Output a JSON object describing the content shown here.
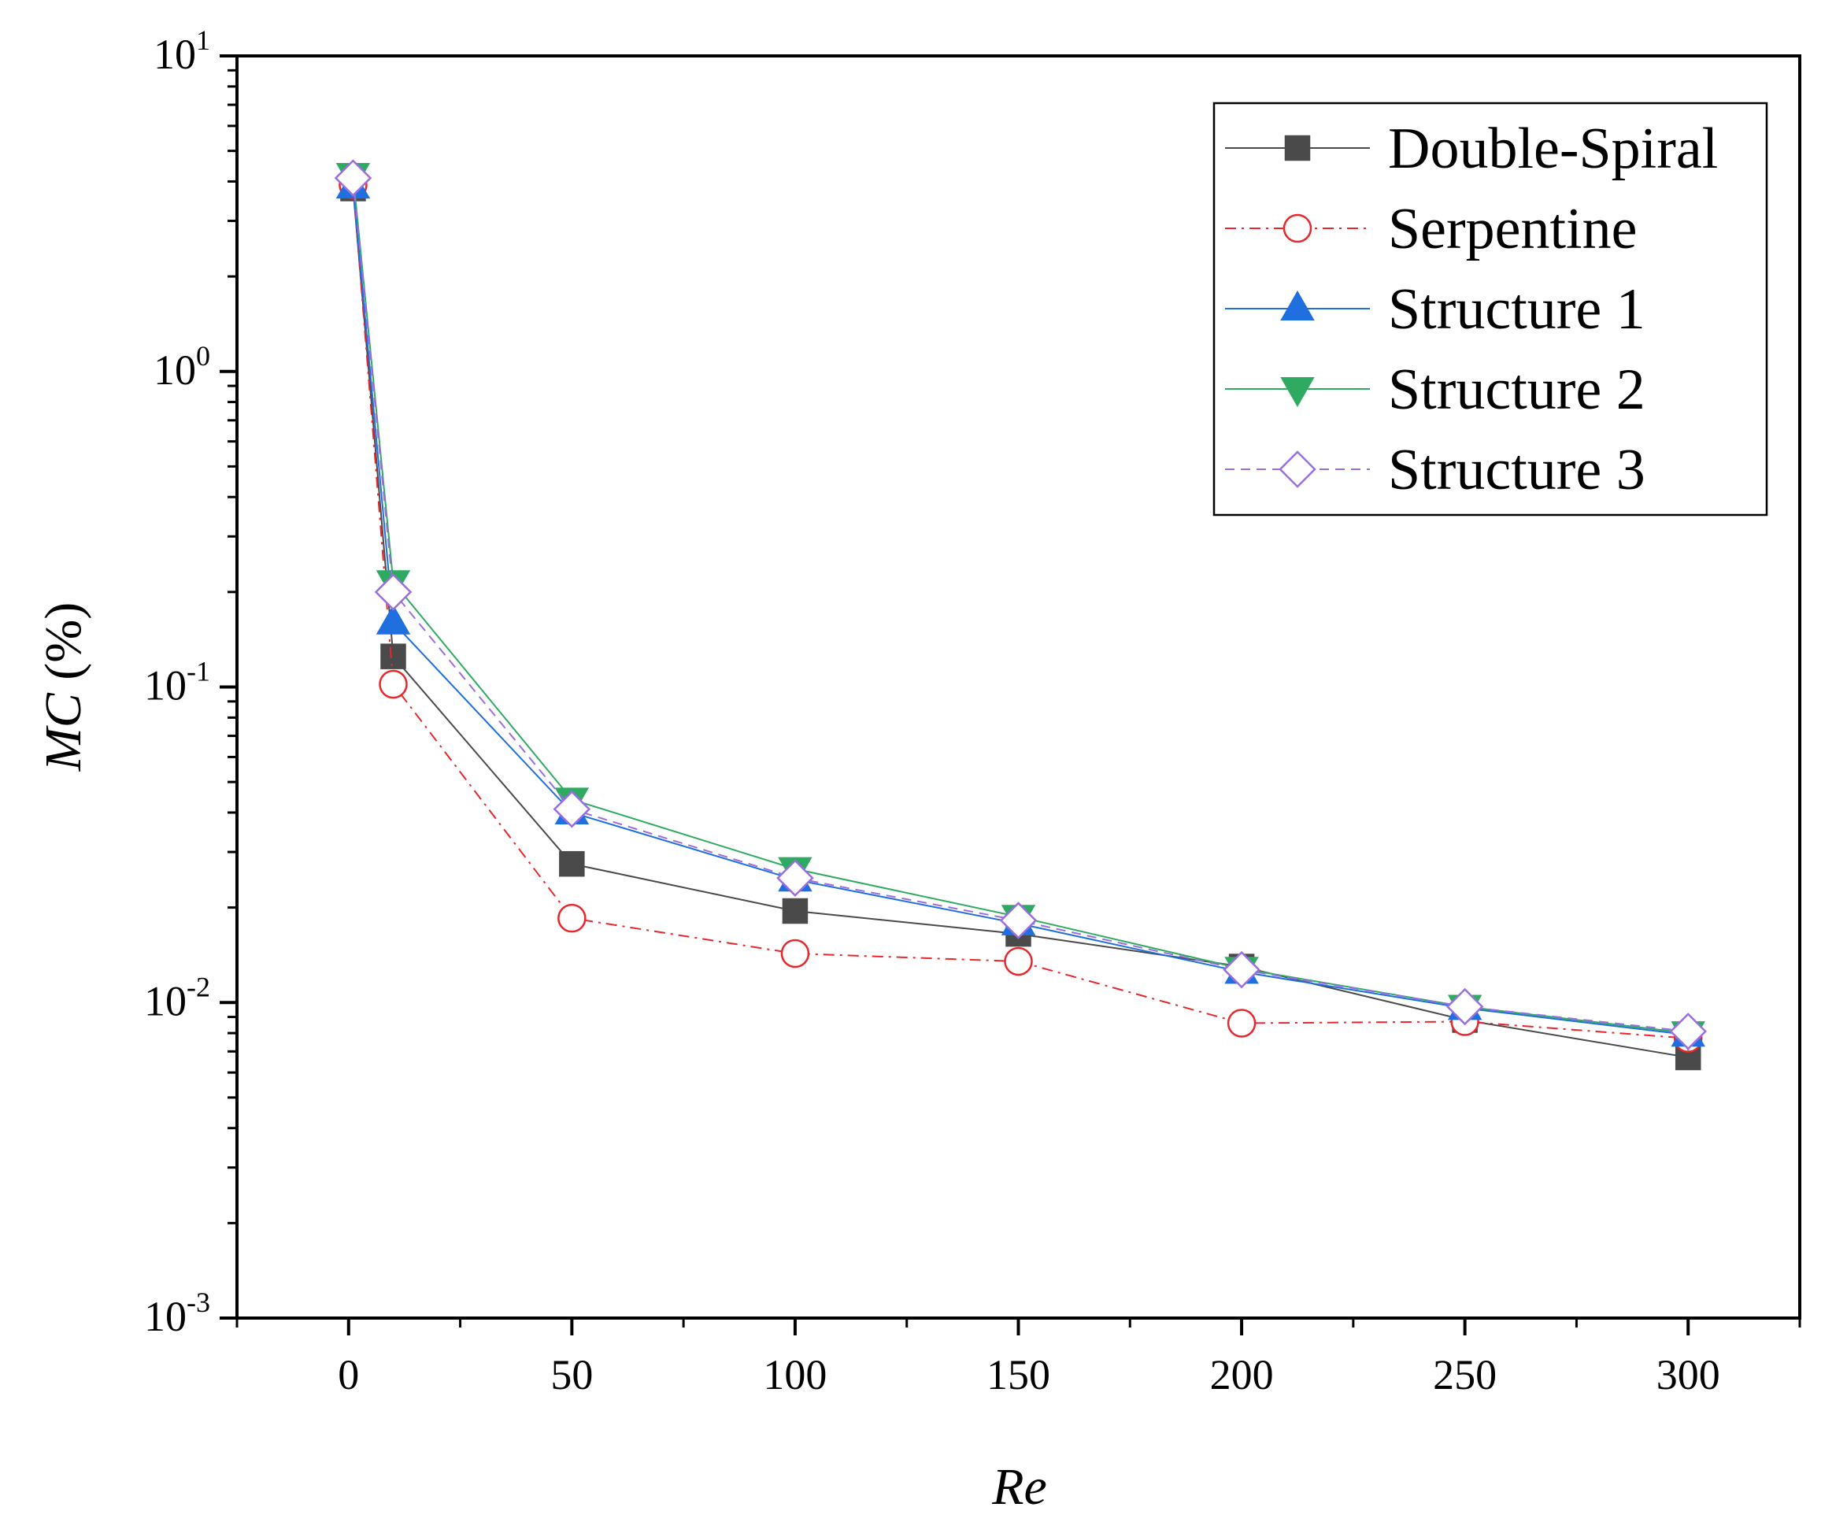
{
  "chart_data": {
    "type": "line",
    "title": "",
    "xlabel": "Re",
    "ylabel_italic": "MC",
    "ylabel_unit": " (%)",
    "yscale": "log",
    "xlim": [
      -25,
      325
    ],
    "ylim": [
      0.001,
      10
    ],
    "x_ticks": [
      0,
      50,
      100,
      150,
      200,
      250,
      300
    ],
    "x_tick_labels": [
      "0",
      "50",
      "100",
      "150",
      "200",
      "250",
      "300"
    ],
    "y_ticks": [
      {
        "value": 10,
        "base": "10",
        "exp": "1"
      },
      {
        "value": 1,
        "base": "10",
        "exp": "0"
      },
      {
        "value": 0.1,
        "base": "10",
        "exp": "-1"
      },
      {
        "value": 0.01,
        "base": "10",
        "exp": "-2"
      },
      {
        "value": 0.001,
        "base": "10",
        "exp": "-3"
      }
    ],
    "legend_position": "top-right",
    "grid": false,
    "x": [
      1,
      10,
      50,
      100,
      150,
      200,
      250,
      300
    ],
    "series": [
      {
        "name": "Double-Spiral",
        "color": "#4a4a4a",
        "marker": "square",
        "filled": true,
        "line": "solid",
        "values": [
          3.8,
          0.125,
          0.0275,
          0.0195,
          0.0165,
          0.013,
          0.0088,
          0.0067
        ]
      },
      {
        "name": "Serpentine",
        "color": "#e8262b",
        "marker": "circle",
        "filled": false,
        "line": "dashdot",
        "values": [
          3.9,
          0.102,
          0.0185,
          0.0143,
          0.0135,
          0.0086,
          0.0087,
          0.0077
        ]
      },
      {
        "name": "Structure 1",
        "color": "#1f6fde",
        "marker": "triangle-up",
        "filled": true,
        "line": "solid",
        "values": [
          3.85,
          0.16,
          0.04,
          0.0245,
          0.0178,
          0.0125,
          0.0096,
          0.0079
        ]
      },
      {
        "name": "Structure 2",
        "color": "#2faa62",
        "marker": "triangle-down",
        "filled": true,
        "line": "solid",
        "values": [
          4.2,
          0.215,
          0.044,
          0.0265,
          0.0187,
          0.0128,
          0.0097,
          0.008
        ]
      },
      {
        "name": "Structure 3",
        "color": "#9a6ee0",
        "marker": "diamond",
        "filled": false,
        "line": "dashed",
        "values": [
          4.1,
          0.2,
          0.041,
          0.0248,
          0.0182,
          0.0127,
          0.0097,
          0.0081
        ]
      }
    ]
  }
}
